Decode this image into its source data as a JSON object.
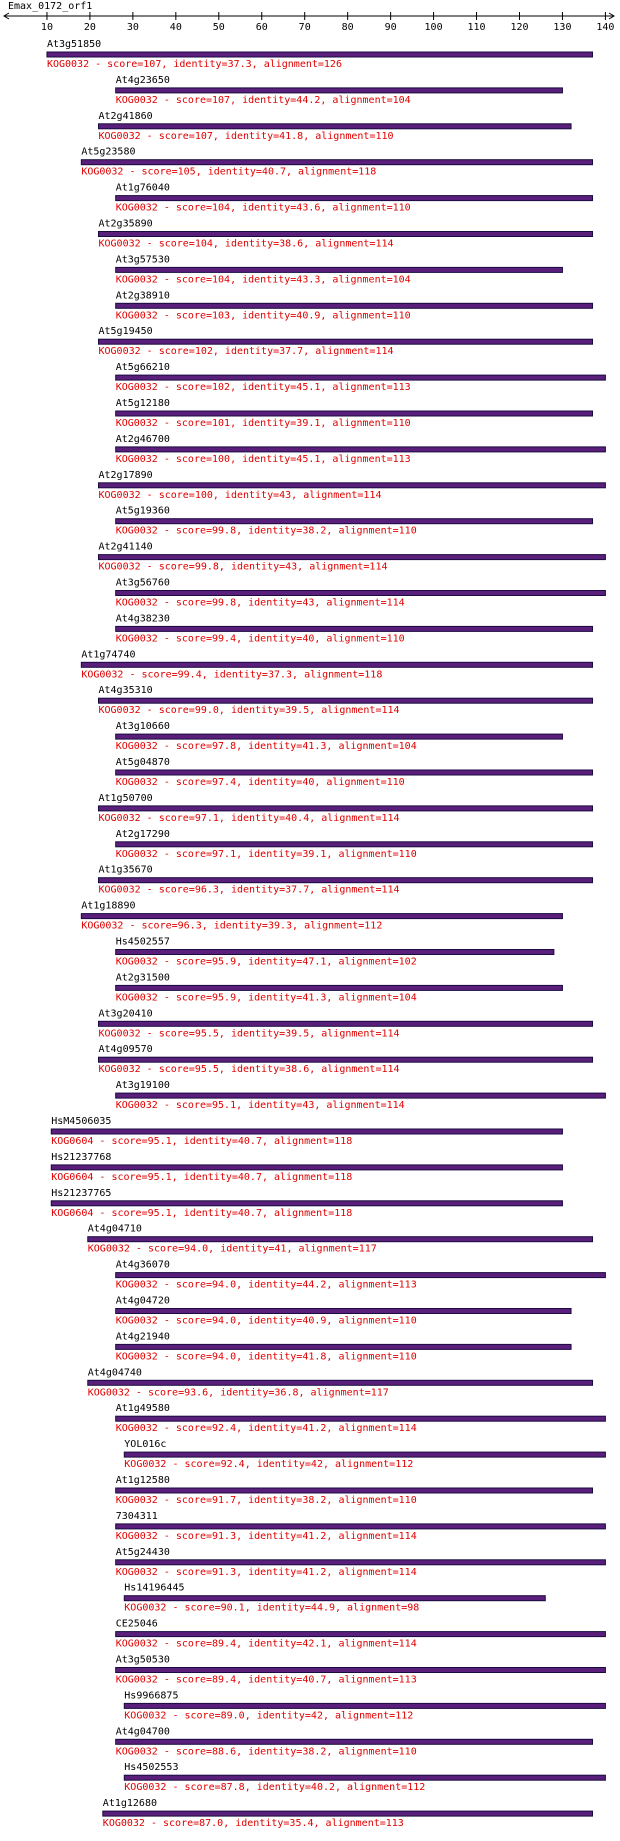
{
  "chart_data": {
    "type": "alignment",
    "title": "Emax_0172_orf1",
    "xlim": [
      0,
      142
    ],
    "xticks": [
      10,
      20,
      30,
      40,
      50,
      60,
      70,
      80,
      90,
      100,
      110,
      120,
      130,
      140
    ],
    "bar_color": "#5a1f7a",
    "label_color": "#e00000",
    "hits": [
      {
        "name": "At3g51850",
        "start": 10,
        "end": 137,
        "label": "KOG0032 - score=107, identity=37.3, alignment=126"
      },
      {
        "name": "At4g23650",
        "start": 26,
        "end": 130,
        "label": "KOG0032 - score=107, identity=44.2, alignment=104"
      },
      {
        "name": "At2g41860",
        "start": 22,
        "end": 132,
        "label": "KOG0032 - score=107, identity=41.8, alignment=110"
      },
      {
        "name": "At5g23580",
        "start": 18,
        "end": 137,
        "label": "KOG0032 - score=105, identity=40.7, alignment=118"
      },
      {
        "name": "At1g76040",
        "start": 26,
        "end": 137,
        "label": "KOG0032 - score=104, identity=43.6, alignment=110"
      },
      {
        "name": "At2g35890",
        "start": 22,
        "end": 137,
        "label": "KOG0032 - score=104, identity=38.6, alignment=114"
      },
      {
        "name": "At3g57530",
        "start": 26,
        "end": 130,
        "label": "KOG0032 - score=104, identity=43.3, alignment=104"
      },
      {
        "name": "At2g38910",
        "start": 26,
        "end": 137,
        "label": "KOG0032 - score=103, identity=40.9, alignment=110"
      },
      {
        "name": "At5g19450",
        "start": 22,
        "end": 137,
        "label": "KOG0032 - score=102, identity=37.7, alignment=114"
      },
      {
        "name": "At5g66210",
        "start": 26,
        "end": 140,
        "label": "KOG0032 - score=102, identity=45.1, alignment=113"
      },
      {
        "name": "At5g12180",
        "start": 26,
        "end": 137,
        "label": "KOG0032 - score=101, identity=39.1, alignment=110"
      },
      {
        "name": "At2g46700",
        "start": 26,
        "end": 140,
        "label": "KOG0032 - score=100, identity=45.1, alignment=113"
      },
      {
        "name": "At2g17890",
        "start": 22,
        "end": 140,
        "label": "KOG0032 - score=100, identity=43, alignment=114"
      },
      {
        "name": "At5g19360",
        "start": 26,
        "end": 137,
        "label": "KOG0032 - score=99.8, identity=38.2, alignment=110"
      },
      {
        "name": "At2g41140",
        "start": 22,
        "end": 140,
        "label": "KOG0032 - score=99.8, identity=43, alignment=114"
      },
      {
        "name": "At3g56760",
        "start": 26,
        "end": 140,
        "label": "KOG0032 - score=99.8, identity=43, alignment=114"
      },
      {
        "name": "At4g38230",
        "start": 26,
        "end": 137,
        "label": "KOG0032 - score=99.4, identity=40, alignment=110"
      },
      {
        "name": "At1g74740",
        "start": 18,
        "end": 137,
        "label": "KOG0032 - score=99.4, identity=37.3, alignment=118"
      },
      {
        "name": "At4g35310",
        "start": 22,
        "end": 137,
        "label": "KOG0032 - score=99.0, identity=39.5, alignment=114"
      },
      {
        "name": "At3g10660",
        "start": 26,
        "end": 130,
        "label": "KOG0032 - score=97.8, identity=41.3, alignment=104"
      },
      {
        "name": "At5g04870",
        "start": 26,
        "end": 137,
        "label": "KOG0032 - score=97.4, identity=40, alignment=110"
      },
      {
        "name": "At1g50700",
        "start": 22,
        "end": 137,
        "label": "KOG0032 - score=97.1, identity=40.4, alignment=114"
      },
      {
        "name": "At2g17290",
        "start": 26,
        "end": 137,
        "label": "KOG0032 - score=97.1, identity=39.1, alignment=110"
      },
      {
        "name": "At1g35670",
        "start": 22,
        "end": 137,
        "label": "KOG0032 - score=96.3, identity=37.7, alignment=114"
      },
      {
        "name": "At1g18890",
        "start": 18,
        "end": 130,
        "label": "KOG0032 - score=96.3, identity=39.3, alignment=112"
      },
      {
        "name": "Hs4502557",
        "start": 26,
        "end": 128,
        "label": "KOG0032 - score=95.9, identity=47.1, alignment=102"
      },
      {
        "name": "At2g31500",
        "start": 26,
        "end": 130,
        "label": "KOG0032 - score=95.9, identity=41.3, alignment=104"
      },
      {
        "name": "At3g20410",
        "start": 22,
        "end": 137,
        "label": "KOG0032 - score=95.5, identity=39.5, alignment=114"
      },
      {
        "name": "At4g09570",
        "start": 22,
        "end": 137,
        "label": "KOG0032 - score=95.5, identity=38.6, alignment=114"
      },
      {
        "name": "At3g19100",
        "start": 26,
        "end": 140,
        "label": "KOG0032 - score=95.1, identity=43, alignment=114"
      },
      {
        "name": "HsM4506035",
        "start": 11,
        "end": 130,
        "label": "KOG0604 - score=95.1, identity=40.7, alignment=118"
      },
      {
        "name": "Hs21237768",
        "start": 11,
        "end": 130,
        "label": "KOG0604 - score=95.1, identity=40.7, alignment=118"
      },
      {
        "name": "Hs21237765",
        "start": 11,
        "end": 130,
        "label": "KOG0604 - score=95.1, identity=40.7, alignment=118"
      },
      {
        "name": "At4g04710",
        "start": 19.5,
        "end": 137,
        "label": "KOG0032 - score=94.0, identity=41, alignment=117"
      },
      {
        "name": "At4g36070",
        "start": 26,
        "end": 140,
        "label": "KOG0032 - score=94.0, identity=44.2, alignment=113"
      },
      {
        "name": "At4g04720",
        "start": 26,
        "end": 132,
        "label": "KOG0032 - score=94.0, identity=40.9, alignment=110"
      },
      {
        "name": "At4g21940",
        "start": 26,
        "end": 132,
        "label": "KOG0032 - score=94.0, identity=41.8, alignment=110"
      },
      {
        "name": "At4g04740",
        "start": 19.5,
        "end": 137,
        "label": "KOG0032 - score=93.6, identity=36.8, alignment=117"
      },
      {
        "name": "At1g49580",
        "start": 26,
        "end": 140,
        "label": "KOG0032 - score=92.4, identity=41.2, alignment=114"
      },
      {
        "name": "YOL016c",
        "start": 28,
        "end": 140,
        "label": "KOG0032 - score=92.4, identity=42, alignment=112"
      },
      {
        "name": "At1g12580",
        "start": 26,
        "end": 137,
        "label": "KOG0032 - score=91.7, identity=38.2, alignment=110"
      },
      {
        "name": "7304311",
        "start": 26,
        "end": 140,
        "label": "KOG0032 - score=91.3, identity=41.2, alignment=114"
      },
      {
        "name": "At5g24430",
        "start": 26,
        "end": 140,
        "label": "KOG0032 - score=91.3, identity=41.2, alignment=114"
      },
      {
        "name": "Hs14196445",
        "start": 28,
        "end": 126,
        "label": "KOG0032 - score=90.1, identity=44.9, alignment=98"
      },
      {
        "name": "CE25046",
        "start": 26,
        "end": 140,
        "label": "KOG0032 - score=89.4, identity=42.1, alignment=114"
      },
      {
        "name": "At3g50530",
        "start": 26,
        "end": 140,
        "label": "KOG0032 - score=89.4, identity=40.7, alignment=113"
      },
      {
        "name": "Hs9966875",
        "start": 28,
        "end": 140,
        "label": "KOG0032 - score=89.0, identity=42, alignment=112"
      },
      {
        "name": "At4g04700",
        "start": 26,
        "end": 137,
        "label": "KOG0032 - score=88.6, identity=38.2, alignment=110"
      },
      {
        "name": "Hs4502553",
        "start": 28,
        "end": 140,
        "label": "KOG0032 - score=87.8, identity=40.2, alignment=112"
      },
      {
        "name": "At1g12680",
        "start": 23,
        "end": 137,
        "label": "KOG0032 - score=87.0, identity=35.4, alignment=113"
      }
    ]
  }
}
